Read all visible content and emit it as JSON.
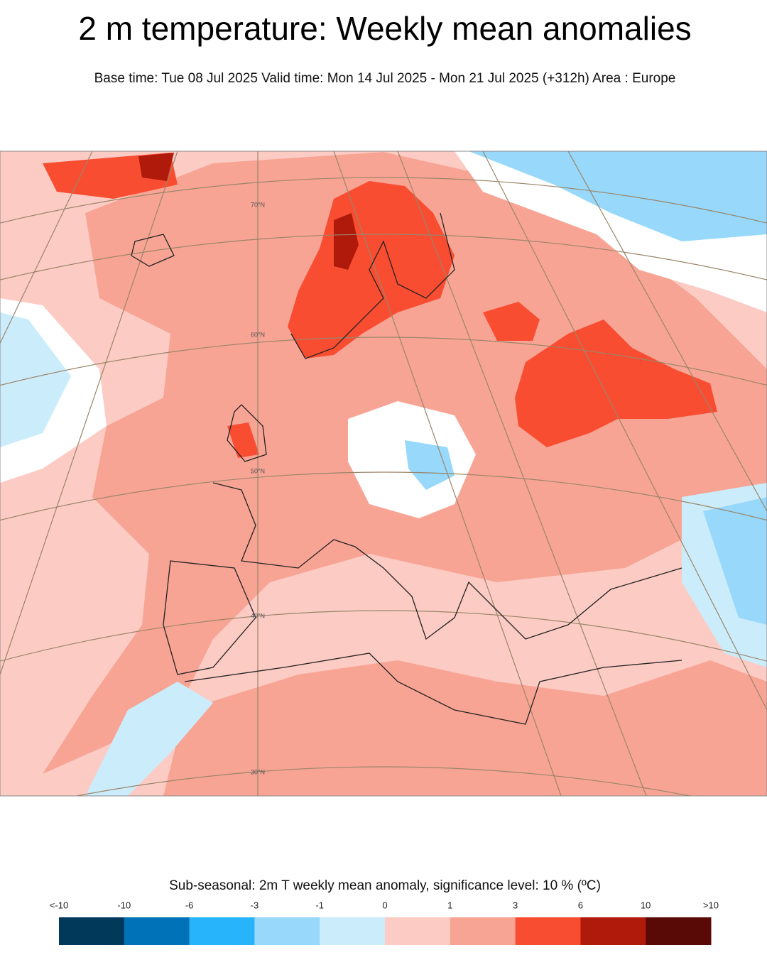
{
  "header": {
    "title": "2 m temperature: Weekly mean anomalies",
    "subtitle": "Base time: Tue 08 Jul 2025 Valid time: Mon 14 Jul 2025 - Mon 21 Jul 2025 (+312h) Area : Europe"
  },
  "map": {
    "latitude_labels": [
      "70°N",
      "60°N",
      "50°N",
      "40°N",
      "30°N"
    ]
  },
  "legend": {
    "title": "Sub-seasonal: 2m T weekly mean anomaly, significance level: 10 % (ºC)",
    "labels": [
      "<-10",
      "-10",
      "-6",
      "-3",
      "-1",
      "0",
      "1",
      "3",
      "6",
      "10",
      ">10"
    ],
    "colors": [
      "#00395a",
      "#0073b8",
      "#28b4fb",
      "#97d8fb",
      "#cbecfb",
      "#fccbc4",
      "#f8a494",
      "#f94d32",
      "#af1a0a",
      "#5a0a06"
    ]
  }
}
